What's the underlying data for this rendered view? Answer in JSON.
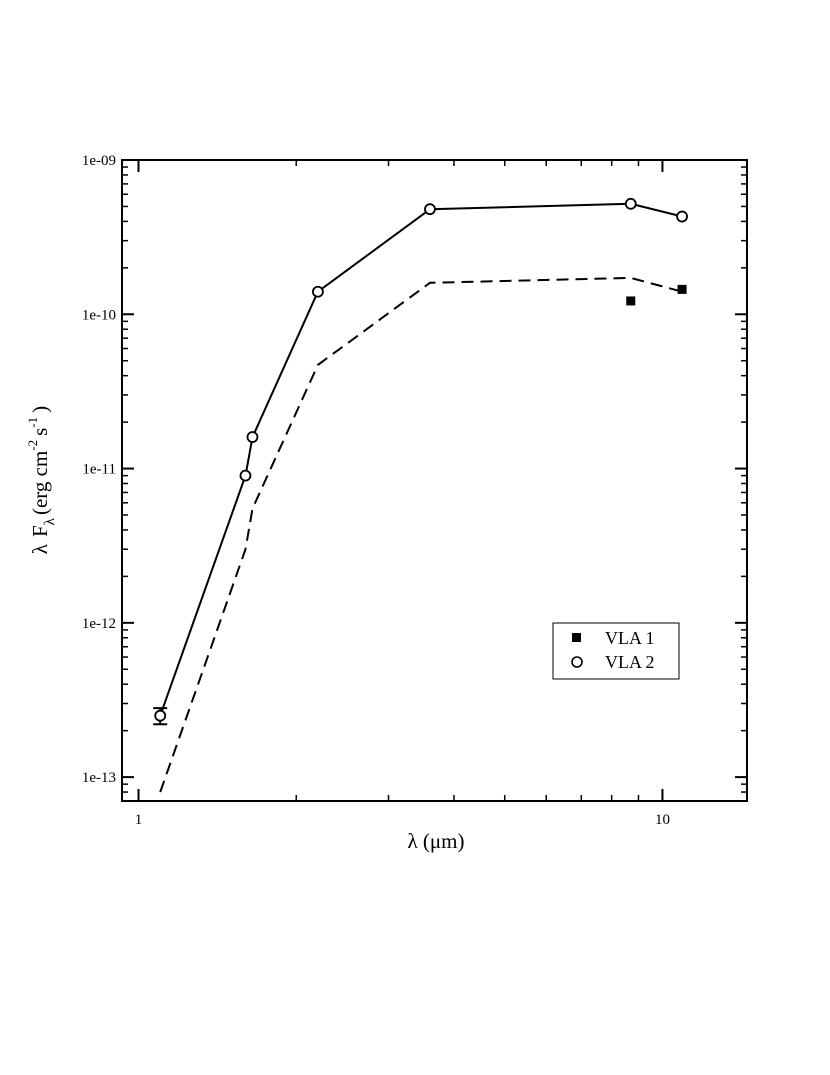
{
  "chart_data": {
    "type": "scatter",
    "title": "",
    "xscale": "log",
    "yscale": "log",
    "xlim": [
      0.93,
      14.5
    ],
    "ylim": [
      7e-14,
      1e-09
    ],
    "xticks": [
      1,
      10
    ],
    "xtick_labels": [
      "1",
      "10"
    ],
    "yticks": [
      1e-13,
      1e-12,
      1e-11,
      1e-10,
      1e-09
    ],
    "ytick_labels": [
      "1e-13",
      "1e-12",
      "1e-11",
      "1e-10",
      "1e-09"
    ],
    "xlabel": {
      "main": "λ (μm)"
    },
    "ylabel": {
      "lambda": "λ",
      "F": "F",
      "F_sub": "λ",
      "units_open": "(erg cm",
      "cm_exp": "-2",
      "s": "s",
      "s_exp": "-1",
      "units_close": ")"
    },
    "grid": false,
    "legend": {
      "position": "lower-right",
      "entries": [
        "VLA 1",
        "VLA 2"
      ]
    },
    "series": [
      {
        "name": "VLA 1",
        "marker": "filled-square",
        "x": [
          8.7,
          10.9
        ],
        "y": [
          1.22e-10,
          1.45e-10
        ]
      },
      {
        "name": "VLA 2",
        "marker": "open-circle",
        "line": "solid",
        "x": [
          1.1,
          1.6,
          1.65,
          2.2,
          3.6,
          8.7,
          10.9
        ],
        "y": [
          2.5e-13,
          9e-12,
          1.6e-11,
          1.4e-10,
          4.8e-10,
          5.2e-10,
          4.3e-10
        ],
        "yerr_low": [
          2.2e-13,
          null,
          null,
          null,
          null,
          null,
          null
        ],
        "yerr_high": [
          2.8e-13,
          null,
          null,
          null,
          null,
          null,
          null
        ]
      },
      {
        "line": "dashed",
        "x": [
          1.1,
          1.6,
          1.65,
          2.2,
          3.6,
          8.7,
          10.9
        ],
        "y": [
          8e-14,
          3e-12,
          5.5e-12,
          4.7e-11,
          1.6e-10,
          1.72e-10,
          1.4e-10
        ]
      }
    ]
  }
}
